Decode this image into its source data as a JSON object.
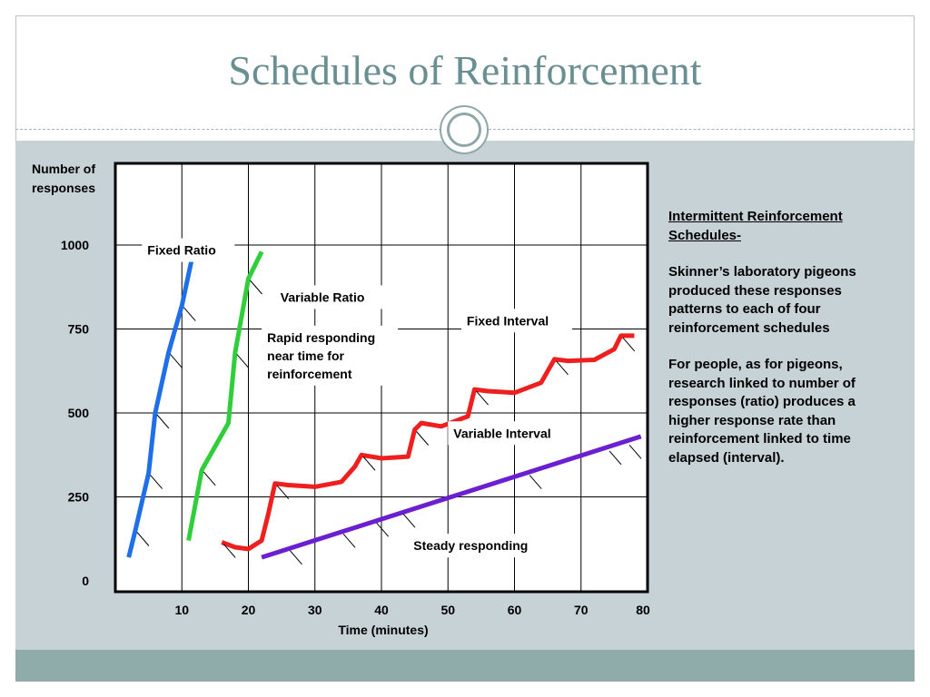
{
  "slide": {
    "title": "Schedules of Reinforcement",
    "colors": {
      "title": "#6a8f92",
      "panel": "#c7d2d7",
      "footer": "#8fabaa"
    }
  },
  "side_text": {
    "heading": "Intermittent Reinforcement Schedules-",
    "paragraph1": "Skinner’s laboratory pigeons produced these responses patterns to each of four reinforcement schedules",
    "paragraph2": "For people, as for pigeons, research linked to number of responses (ratio) produces a higher response rate than reinforcement linked to time elapsed (interval)."
  },
  "chart_data": {
    "type": "line",
    "ylabel": "Number of responses",
    "xlabel": "Time (minutes)",
    "x_ticks": [
      10,
      20,
      30,
      40,
      50,
      60,
      70,
      80
    ],
    "y_ticks": [
      0,
      250,
      500,
      750,
      1000
    ],
    "xlim": [
      0,
      80
    ],
    "ylim": [
      0,
      1000
    ],
    "grid": true,
    "series": [
      {
        "name": "Fixed Ratio",
        "color": "#1f6fe8",
        "label_at": [
          4,
          1020
        ],
        "points": [
          [
            2,
            70
          ],
          [
            3,
            150
          ],
          [
            5,
            320
          ],
          [
            6,
            500
          ],
          [
            8,
            680
          ],
          [
            10,
            820
          ],
          [
            12,
            1005
          ]
        ],
        "ticks": [
          [
            3,
            150
          ],
          [
            5,
            320
          ],
          [
            6,
            500
          ],
          [
            8,
            680
          ],
          [
            10,
            820
          ],
          [
            12,
            1005
          ]
        ]
      },
      {
        "name": "Variable Ratio",
        "color": "#2fce3a",
        "label_at": [
          24,
          880
        ],
        "points": [
          [
            11,
            120
          ],
          [
            13,
            330
          ],
          [
            17,
            470
          ],
          [
            18,
            680
          ],
          [
            20,
            900
          ],
          [
            22,
            980
          ]
        ],
        "ticks": [
          [
            13,
            330
          ],
          [
            18,
            680
          ],
          [
            20,
            900
          ]
        ]
      },
      {
        "name": "Fixed Interval",
        "color": "#ee1f1f",
        "label_at": [
          52,
          810
        ],
        "points": [
          [
            16,
            115
          ],
          [
            18,
            100
          ],
          [
            20,
            95
          ],
          [
            22,
            120
          ],
          [
            23,
            200
          ],
          [
            24,
            290
          ],
          [
            26,
            285
          ],
          [
            30,
            280
          ],
          [
            34,
            295
          ],
          [
            36,
            340
          ],
          [
            37,
            375
          ],
          [
            40,
            365
          ],
          [
            44,
            370
          ],
          [
            45,
            450
          ],
          [
            46,
            470
          ],
          [
            49,
            460
          ],
          [
            53,
            490
          ],
          [
            54,
            570
          ],
          [
            56,
            565
          ],
          [
            60,
            560
          ],
          [
            64,
            590
          ],
          [
            66,
            660
          ],
          [
            68,
            655
          ],
          [
            72,
            658
          ],
          [
            75,
            690
          ],
          [
            76,
            730
          ],
          [
            78,
            730
          ]
        ],
        "ticks": [
          [
            16,
            115
          ],
          [
            24,
            290
          ],
          [
            37,
            375
          ],
          [
            45,
            450
          ],
          [
            54,
            570
          ],
          [
            66,
            660
          ],
          [
            76,
            730
          ]
        ]
      },
      {
        "name": "Variable Interval",
        "color": "#6b1fd1",
        "label_at": [
          50,
          475
        ],
        "points": [
          [
            22,
            70
          ],
          [
            79,
            430
          ]
        ],
        "ticks": [
          [
            26,
            95
          ],
          [
            34,
            145
          ],
          [
            39,
            178
          ],
          [
            43,
            205
          ],
          [
            62,
            320
          ],
          [
            74,
            392
          ],
          [
            77,
            410
          ]
        ]
      }
    ],
    "annotations": [
      {
        "text": "Rapid responding near time for reinforcement",
        "at": [
          22,
          760
        ]
      },
      {
        "text": "Steady responding",
        "at": [
          44,
          140
        ]
      }
    ]
  }
}
